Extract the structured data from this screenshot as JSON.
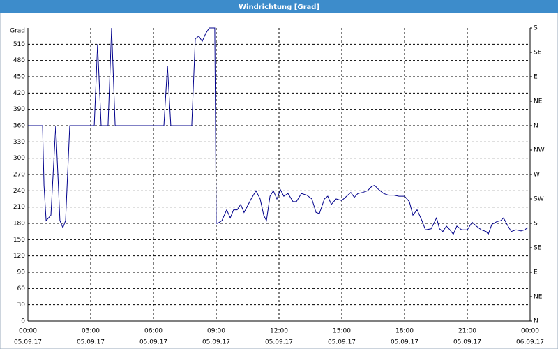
{
  "chart_data": {
    "type": "line",
    "title": "Windrichtung [Grad]",
    "x": [
      0,
      0.7,
      0.77,
      0.87,
      1.1,
      1.33,
      1.53,
      1.67,
      1.8,
      2,
      3.17,
      3.33,
      3.5,
      3.83,
      4,
      4.17,
      6.5,
      6.67,
      6.83,
      7.83,
      8,
      8.17,
      8.33,
      8.5,
      8.67,
      8.83,
      8.93,
      9.0,
      9.07,
      9.27,
      9.5,
      9.67,
      9.83,
      10,
      10.17,
      10.33,
      10.67,
      10.9,
      11.1,
      11.27,
      11.4,
      11.57,
      11.73,
      11.9,
      12.07,
      12.23,
      12.43,
      12.67,
      12.83,
      13.07,
      13.33,
      13.57,
      13.77,
      13.93,
      14.17,
      14.33,
      14.5,
      14.73,
      15,
      15.23,
      15.43,
      15.6,
      15.77,
      16,
      16.23,
      16.43,
      16.57,
      16.77,
      17,
      17.23,
      17.5,
      17.73,
      18,
      18.23,
      18.4,
      18.6,
      18.83,
      19,
      19.27,
      19.53,
      19.67,
      19.83,
      20,
      20.17,
      20.33,
      20.5,
      20.73,
      21,
      21.23,
      21.43,
      21.67,
      21.9,
      22,
      22.17,
      22.4,
      22.6,
      22.73,
      22.9,
      23.1,
      23.33,
      23.57,
      23.73,
      23.9
    ],
    "series": [
      {
        "name": "Windrichtung",
        "color": "#00008b",
        "values": [
          360,
          360,
          250,
          185,
          195,
          360,
          185,
          172,
          185,
          360,
          360,
          510,
          360,
          360,
          540,
          360,
          360,
          470,
          360,
          360,
          520,
          525,
          515,
          530,
          540,
          540,
          540,
          180,
          180,
          185,
          205,
          190,
          205,
          205,
          215,
          200,
          225,
          240,
          225,
          195,
          185,
          230,
          240,
          225,
          242,
          230,
          235,
          220,
          220,
          235,
          232,
          225,
          200,
          198,
          225,
          230,
          215,
          225,
          222,
          230,
          237,
          228,
          235,
          237,
          240,
          248,
          250,
          242,
          235,
          232,
          232,
          230,
          230,
          220,
          195,
          205,
          185,
          168,
          170,
          190,
          170,
          165,
          175,
          168,
          160,
          175,
          168,
          168,
          182,
          175,
          168,
          165,
          160,
          178,
          183,
          185,
          190,
          178,
          165,
          168,
          166,
          168,
          172
        ]
      }
    ],
    "xlim": [
      0,
      24
    ],
    "xticks": [
      {
        "value": 0,
        "label": "00:00"
      },
      {
        "value": 3,
        "label": "03:00"
      },
      {
        "value": 6,
        "label": "06:00"
      },
      {
        "value": 9,
        "label": "09:00"
      },
      {
        "value": 12,
        "label": "12:00"
      },
      {
        "value": 15,
        "label": "15:00"
      },
      {
        "value": 18,
        "label": "18:00"
      },
      {
        "value": 21,
        "label": "21:00"
      },
      {
        "value": 24,
        "label": "00:00"
      }
    ],
    "xtick_dates": [
      "05.09.17",
      "05.09.17",
      "05.09.17",
      "05.09.17",
      "05.09.17",
      "05.09.17",
      "05.09.17",
      "05.09.17",
      "06.09.17"
    ],
    "ylim": [
      0,
      540
    ],
    "yticks": [
      0,
      30,
      60,
      90,
      120,
      150,
      180,
      210,
      240,
      270,
      300,
      330,
      360,
      390,
      420,
      450,
      480,
      510,
      {
        "value": 540,
        "label": "Grad"
      }
    ],
    "y2lim": [
      0,
      540
    ],
    "y2ticks": [
      {
        "value": 0,
        "label": "N"
      },
      {
        "value": 45,
        "label": "NE"
      },
      {
        "value": 90,
        "label": "E"
      },
      {
        "value": 135,
        "label": "SE"
      },
      {
        "value": 180,
        "label": "S"
      },
      {
        "value": 225,
        "label": "SW"
      },
      {
        "value": 270,
        "label": "W"
      },
      {
        "value": 315,
        "label": "NW"
      },
      {
        "value": 360,
        "label": "N"
      },
      {
        "value": 405,
        "label": "NE"
      },
      {
        "value": 450,
        "label": "E"
      },
      {
        "value": 495,
        "label": "SE"
      },
      {
        "value": 540,
        "label": "S"
      }
    ],
    "grid": true
  }
}
